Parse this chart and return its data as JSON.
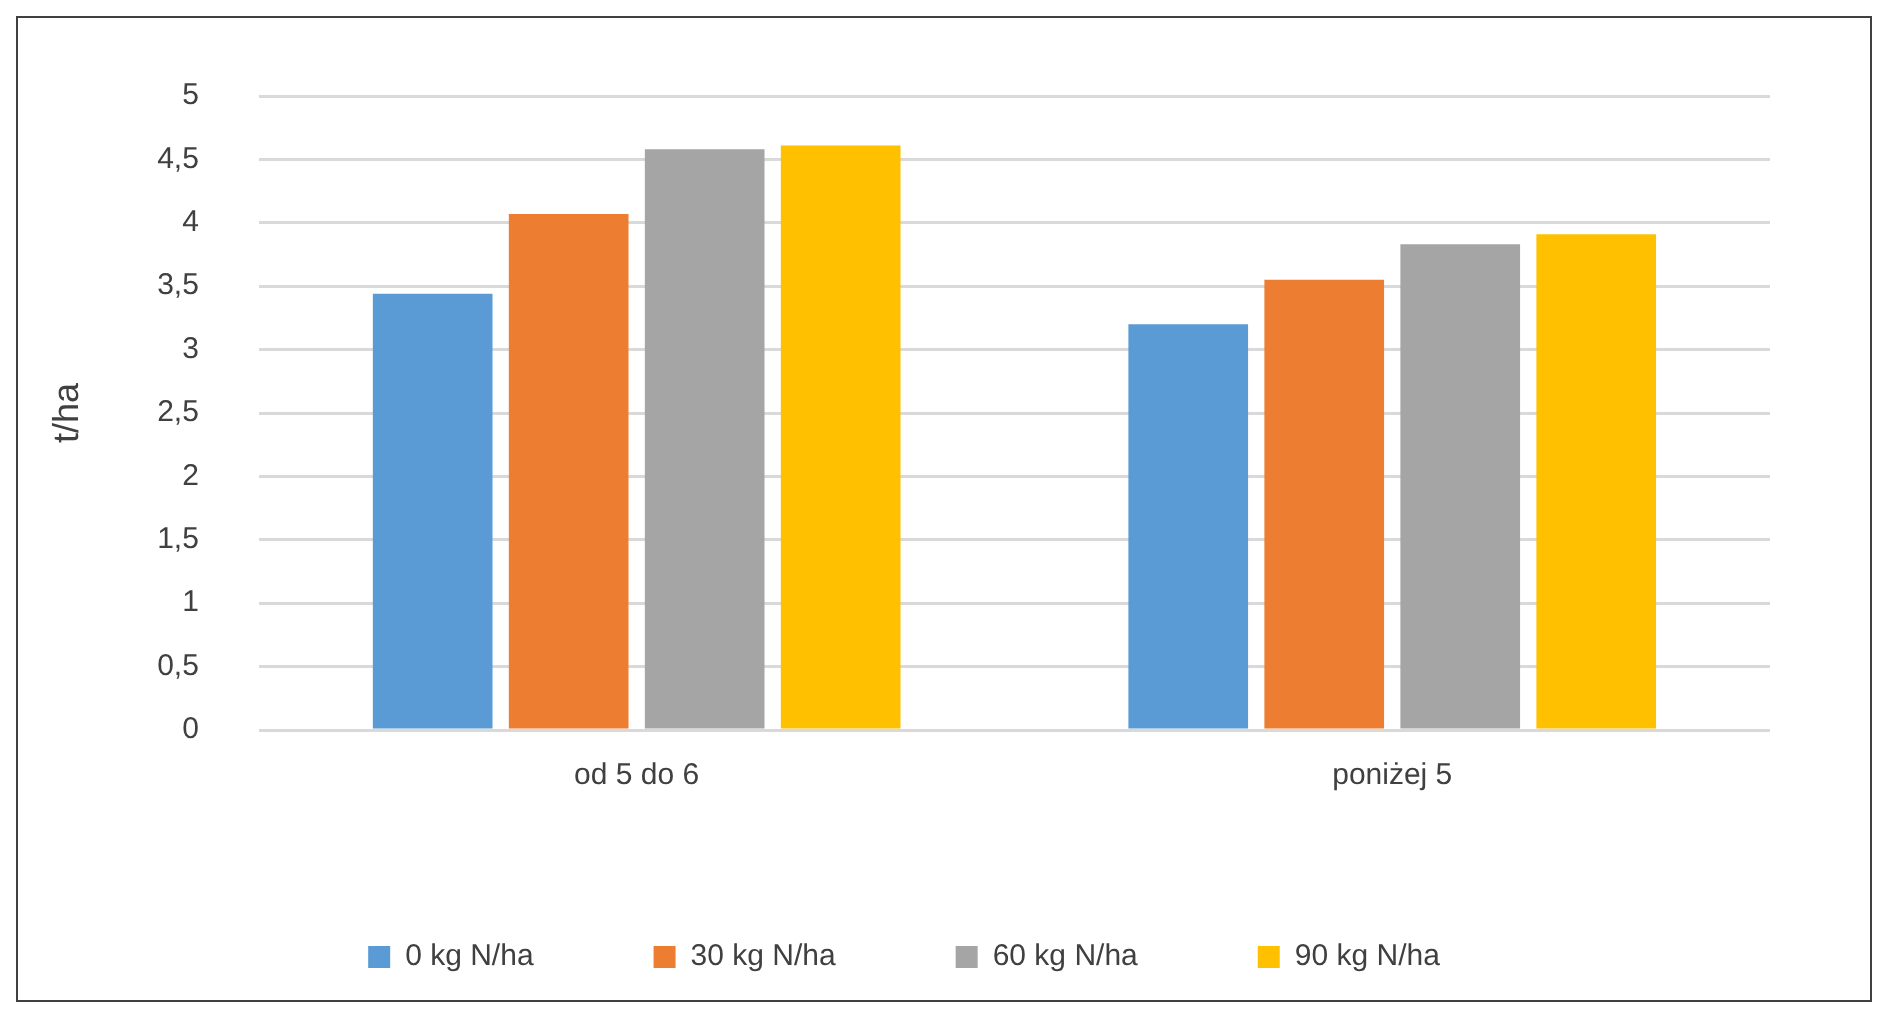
{
  "chart_data": {
    "type": "bar",
    "ylabel": "t/ha",
    "categories": [
      "od 5 do 6",
      "poniżej 5"
    ],
    "series": [
      {
        "name": "0 kg N/ha",
        "color": "#5b9bd5",
        "values": [
          3.44,
          3.2
        ]
      },
      {
        "name": "30 kg N/ha",
        "color": "#ed7d31",
        "values": [
          4.07,
          3.55
        ]
      },
      {
        "name": "60 kg N/ha",
        "color": "#a5a5a5",
        "values": [
          4.58,
          3.83
        ]
      },
      {
        "name": "90 kg N/ha",
        "color": "#ffc000",
        "values": [
          4.61,
          3.91
        ]
      }
    ],
    "ylim": [
      0,
      5
    ],
    "yticks": [
      0,
      {
        "value": 0.5,
        "label": "0,5"
      },
      1,
      {
        "value": 1.5,
        "label": "1,5"
      },
      2,
      {
        "value": 2.5,
        "label": "2,5"
      },
      3,
      {
        "value": 3.5,
        "label": "3,5"
      },
      4,
      {
        "value": 4.5,
        "label": "4,5"
      },
      5
    ],
    "grid": "y",
    "legend": "bottom"
  }
}
